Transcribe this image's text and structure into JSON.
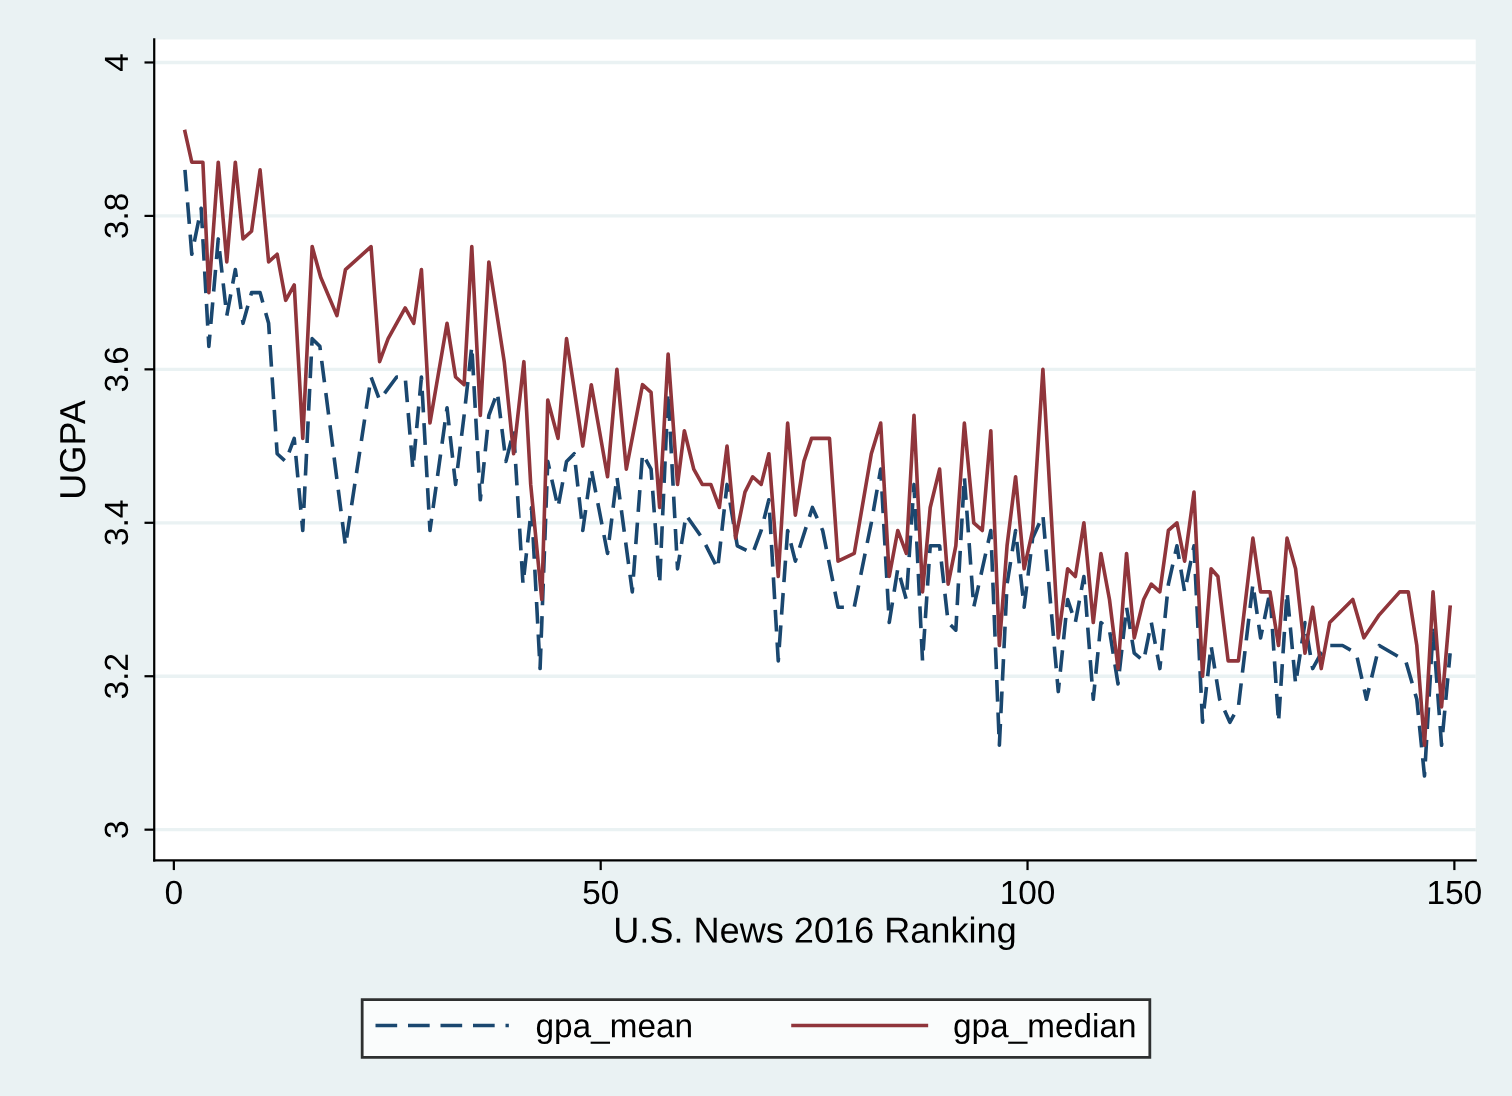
{
  "chart_data": {
    "type": "line",
    "xlabel": "U.S. News 2016 Ranking",
    "ylabel": "UGPA",
    "xlim": [
      -2.3,
      152.5
    ],
    "xticks": [
      0,
      50,
      100,
      150
    ],
    "ylim": [
      2.96,
      4.03
    ],
    "yticks": [
      3,
      3.2,
      3.4,
      3.6,
      3.8,
      4
    ],
    "grid": "y",
    "legend": "bottom",
    "series": [
      {
        "name": "gpa_mean",
        "color": "#1a476f",
        "line_style": "dashed",
        "x": [
          1.3,
          2.1,
          3.2,
          4.1,
          5.2,
          6.2,
          7.2,
          8.1,
          9.1,
          10.1,
          11.1,
          12.1,
          13.1,
          14.1,
          15.1,
          16.2,
          17.1,
          20.1,
          23.1,
          24.1,
          26.1,
          27.1,
          28.0,
          29.0,
          30.0,
          32.0,
          33.0,
          34.0,
          34.9,
          35.9,
          36.9,
          37.9,
          38.9,
          39.8,
          40.9,
          41.9,
          42.9,
          43.8,
          45.0,
          46.0,
          46.9,
          47.9,
          48.9,
          50.8,
          51.9,
          53.7,
          54.9,
          55.9,
          56.9,
          57.9,
          59.0,
          60.0,
          61.9,
          63.7,
          64.8,
          66.0,
          67.8,
          68.8,
          69.7,
          70.8,
          71.9,
          72.8,
          74.8,
          76.0,
          77.8,
          79.7,
          81.7,
          82.8,
          83.8,
          84.8,
          85.8,
          86.7,
          87.7,
          88.6,
          89.7,
          90.7,
          91.6,
          92.6,
          93.7,
          94.7,
          95.7,
          96.7,
          97.6,
          98.6,
          99.6,
          100.6,
          101.8,
          103.6,
          104.7,
          105.6,
          106.6,
          107.7,
          108.6,
          109.6,
          110.6,
          111.6,
          112.5,
          113.6,
          114.5,
          115.5,
          116.5,
          117.5,
          118.4,
          119.5,
          120.5,
          121.5,
          122.5,
          123.7,
          124.7,
          126.4,
          127.3,
          128.4,
          129.4,
          130.4,
          131.4,
          132.5,
          133.4,
          134.4,
          135.4,
          136.9,
          138.5,
          139.7,
          141.2,
          144.3,
          145.6,
          146.5,
          147.5,
          148.5,
          149.5
        ],
        "values": [
          3.86,
          3.75,
          3.81,
          3.63,
          3.77,
          3.67,
          3.73,
          3.66,
          3.7,
          3.7,
          3.66,
          3.49,
          3.48,
          3.51,
          3.39,
          3.64,
          3.63,
          3.37,
          3.59,
          3.56,
          3.59,
          3.59,
          3.47,
          3.59,
          3.39,
          3.55,
          3.45,
          3.54,
          3.63,
          3.43,
          3.54,
          3.57,
          3.48,
          3.52,
          3.32,
          3.42,
          3.21,
          3.48,
          3.42,
          3.48,
          3.49,
          3.39,
          3.47,
          3.36,
          3.46,
          3.31,
          3.49,
          3.47,
          3.32,
          3.57,
          3.34,
          3.41,
          3.38,
          3.34,
          3.45,
          3.37,
          3.36,
          3.39,
          3.43,
          3.22,
          3.39,
          3.35,
          3.42,
          3.39,
          3.29,
          3.29,
          3.4,
          3.47,
          3.27,
          3.34,
          3.3,
          3.45,
          3.22,
          3.37,
          3.37,
          3.27,
          3.26,
          3.46,
          3.29,
          3.34,
          3.39,
          3.11,
          3.32,
          3.39,
          3.29,
          3.38,
          3.41,
          3.18,
          3.3,
          3.27,
          3.33,
          3.17,
          3.27,
          3.26,
          3.19,
          3.29,
          3.23,
          3.22,
          3.27,
          3.21,
          3.32,
          3.37,
          3.31,
          3.37,
          3.14,
          3.24,
          3.17,
          3.14,
          3.16,
          3.32,
          3.25,
          3.31,
          3.14,
          3.31,
          3.19,
          3.27,
          3.21,
          3.23,
          3.24,
          3.24,
          3.23,
          3.17,
          3.24,
          3.22,
          3.17,
          3.07,
          3.26,
          3.11,
          3.23
        ]
      },
      {
        "name": "gpa_median",
        "color": "#90353b",
        "line_style": "solid",
        "x": [
          1.3,
          2.1,
          3.4,
          4.1,
          5.2,
          6.2,
          7.2,
          8.1,
          9.1,
          10.1,
          11.1,
          12.1,
          13.1,
          14.1,
          15.1,
          16.2,
          17.2,
          19.1,
          20.1,
          23.1,
          24.1,
          25.1,
          27.1,
          28.1,
          29.0,
          30.0,
          32.0,
          33.0,
          34.0,
          34.9,
          35.9,
          36.9,
          38.7,
          39.8,
          41.0,
          41.8,
          43.1,
          43.8,
          45.0,
          46.0,
          47.9,
          48.9,
          50.8,
          51.9,
          53.0,
          54.9,
          55.9,
          56.9,
          57.9,
          59.0,
          59.8,
          60.9,
          61.9,
          62.9,
          63.9,
          64.8,
          65.8,
          66.9,
          67.8,
          68.8,
          69.7,
          70.8,
          71.9,
          72.8,
          73.8,
          74.7,
          76.8,
          77.8,
          79.7,
          81.7,
          82.8,
          83.8,
          84.8,
          85.8,
          86.7,
          87.7,
          88.6,
          89.7,
          90.7,
          91.6,
          92.6,
          93.7,
          94.7,
          95.7,
          96.7,
          97.6,
          98.6,
          99.6,
          100.6,
          101.8,
          103.6,
          104.7,
          105.6,
          106.6,
          107.7,
          108.6,
          109.6,
          110.6,
          111.6,
          112.5,
          113.6,
          114.5,
          115.5,
          116.5,
          117.5,
          118.4,
          119.5,
          120.5,
          121.5,
          122.3,
          123.5,
          124.7,
          126.4,
          127.3,
          128.4,
          129.4,
          130.4,
          131.4,
          132.5,
          133.4,
          134.4,
          135.4,
          138.1,
          139.4,
          141.2,
          143.6,
          144.6,
          145.6,
          146.5,
          147.5,
          148.5,
          149.5
        ],
        "values": [
          3.91,
          3.87,
          3.87,
          3.7,
          3.87,
          3.74,
          3.87,
          3.77,
          3.78,
          3.86,
          3.74,
          3.75,
          3.69,
          3.71,
          3.51,
          3.76,
          3.72,
          3.67,
          3.73,
          3.76,
          3.61,
          3.64,
          3.68,
          3.66,
          3.73,
          3.53,
          3.66,
          3.59,
          3.58,
          3.76,
          3.54,
          3.74,
          3.61,
          3.49,
          3.61,
          3.45,
          3.3,
          3.56,
          3.51,
          3.64,
          3.5,
          3.58,
          3.46,
          3.6,
          3.47,
          3.58,
          3.57,
          3.42,
          3.62,
          3.45,
          3.52,
          3.47,
          3.45,
          3.45,
          3.42,
          3.5,
          3.38,
          3.44,
          3.46,
          3.45,
          3.49,
          3.33,
          3.53,
          3.41,
          3.48,
          3.51,
          3.51,
          3.35,
          3.36,
          3.49,
          3.53,
          3.33,
          3.39,
          3.36,
          3.54,
          3.31,
          3.42,
          3.47,
          3.32,
          3.37,
          3.53,
          3.4,
          3.39,
          3.52,
          3.24,
          3.37,
          3.46,
          3.34,
          3.39,
          3.6,
          3.25,
          3.34,
          3.33,
          3.4,
          3.27,
          3.36,
          3.3,
          3.21,
          3.36,
          3.25,
          3.3,
          3.32,
          3.31,
          3.39,
          3.4,
          3.35,
          3.44,
          3.2,
          3.34,
          3.33,
          3.22,
          3.22,
          3.38,
          3.31,
          3.31,
          3.24,
          3.38,
          3.34,
          3.23,
          3.29,
          3.21,
          3.27,
          3.3,
          3.25,
          3.28,
          3.31,
          3.31,
          3.24,
          3.11,
          3.31,
          3.16,
          3.29
        ]
      }
    ]
  }
}
